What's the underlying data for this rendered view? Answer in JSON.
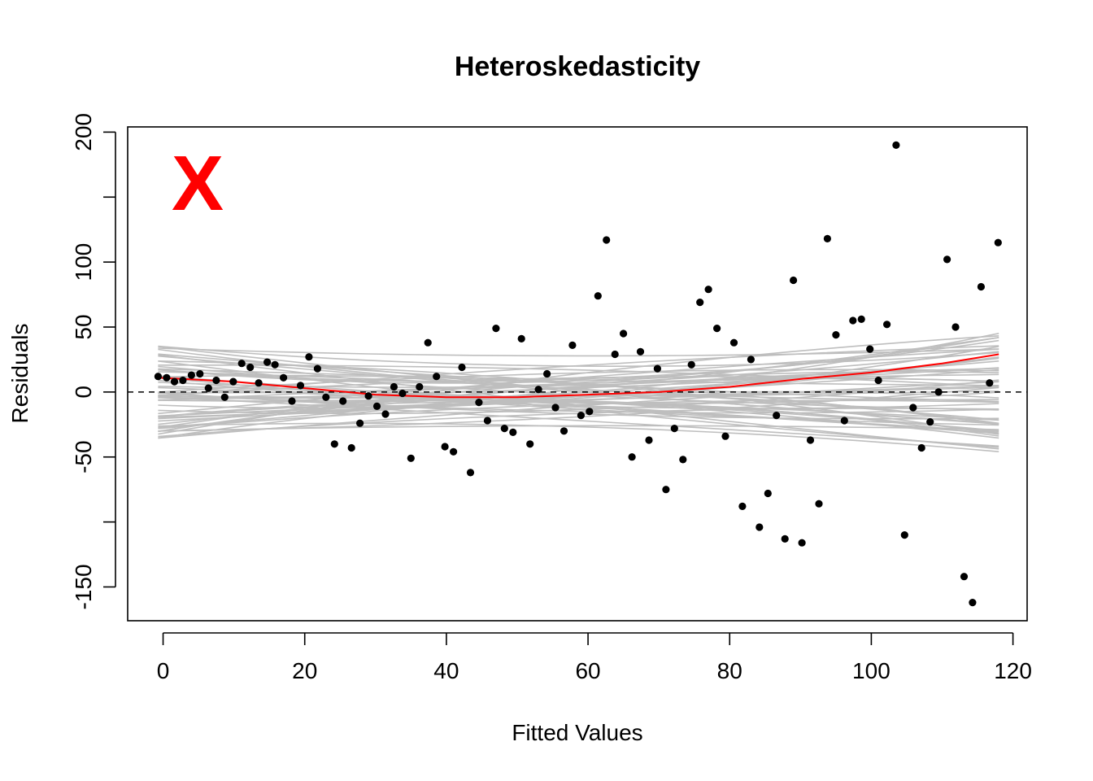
{
  "chart_data": {
    "type": "scatter",
    "title": "Heteroskedasticity",
    "xlabel": "Fitted Values",
    "ylabel": "Residuals",
    "xlim": [
      -5,
      122
    ],
    "ylim": [
      -176,
      204
    ],
    "x_ticks": [
      0,
      20,
      40,
      60,
      80,
      100,
      120
    ],
    "x_tick_labels": [
      "0",
      "20",
      "40",
      "60",
      "80",
      "100",
      "120"
    ],
    "y_ticks": [
      -150,
      -100,
      -50,
      0,
      50,
      100,
      150,
      200
    ],
    "y_tick_labels": [
      "-150",
      "",
      "-50",
      "0",
      "50",
      "100",
      "",
      "200"
    ],
    "reference_line": {
      "y": 0,
      "style": "dashed",
      "color": "#000000"
    },
    "annotation_mark": {
      "text": "X",
      "color": "#ff0000"
    },
    "points_color": "#000000",
    "fit_color": "#ff0000",
    "envelope_color": "#bebebe",
    "points": [
      [
        -0.7,
        12
      ],
      [
        0.5,
        11
      ],
      [
        1.6,
        8
      ],
      [
        2.8,
        9
      ],
      [
        4.0,
        13
      ],
      [
        5.2,
        14
      ],
      [
        6.4,
        3
      ],
      [
        7.5,
        9
      ],
      [
        8.7,
        -4
      ],
      [
        9.9,
        8
      ],
      [
        11.1,
        22
      ],
      [
        12.3,
        19
      ],
      [
        13.5,
        7
      ],
      [
        14.7,
        23
      ],
      [
        15.8,
        21
      ],
      [
        17.0,
        11
      ],
      [
        18.2,
        -7
      ],
      [
        19.4,
        5
      ],
      [
        20.6,
        27
      ],
      [
        21.8,
        18
      ],
      [
        23.0,
        -4
      ],
      [
        24.2,
        -40
      ],
      [
        25.4,
        -7
      ],
      [
        26.6,
        -43
      ],
      [
        27.8,
        -24
      ],
      [
        29.0,
        -3
      ],
      [
        30.2,
        -11
      ],
      [
        31.4,
        -17
      ],
      [
        32.6,
        4
      ],
      [
        33.8,
        -1
      ],
      [
        35.0,
        -51
      ],
      [
        36.2,
        4
      ],
      [
        37.4,
        38
      ],
      [
        38.6,
        12
      ],
      [
        39.8,
        -42
      ],
      [
        41.0,
        -46
      ],
      [
        42.2,
        19
      ],
      [
        43.4,
        -62
      ],
      [
        44.6,
        -8
      ],
      [
        45.8,
        -22
      ],
      [
        47.0,
        49
      ],
      [
        48.2,
        -28
      ],
      [
        49.4,
        -31
      ],
      [
        50.6,
        41
      ],
      [
        51.8,
        -40
      ],
      [
        53.0,
        2
      ],
      [
        54.2,
        14
      ],
      [
        55.4,
        -12
      ],
      [
        56.6,
        -30
      ],
      [
        57.8,
        36
      ],
      [
        59.0,
        -18
      ],
      [
        60.2,
        -15
      ],
      [
        61.4,
        74
      ],
      [
        62.6,
        117
      ],
      [
        63.8,
        29
      ],
      [
        65.0,
        45
      ],
      [
        66.2,
        -50
      ],
      [
        67.4,
        31
      ],
      [
        68.6,
        -37
      ],
      [
        69.8,
        18
      ],
      [
        71.0,
        -75
      ],
      [
        72.2,
        -28
      ],
      [
        73.4,
        -52
      ],
      [
        74.6,
        21
      ],
      [
        75.8,
        69
      ],
      [
        77.0,
        79
      ],
      [
        78.2,
        49
      ],
      [
        79.4,
        -34
      ],
      [
        80.6,
        38
      ],
      [
        81.8,
        -88
      ],
      [
        83.0,
        25
      ],
      [
        84.2,
        -104
      ],
      [
        85.4,
        -78
      ],
      [
        86.6,
        -18
      ],
      [
        87.8,
        -113
      ],
      [
        89.0,
        86
      ],
      [
        90.2,
        -116
      ],
      [
        91.4,
        -37
      ],
      [
        92.6,
        -86
      ],
      [
        93.8,
        118
      ],
      [
        95.0,
        44
      ],
      [
        96.2,
        -22
      ],
      [
        97.4,
        55
      ],
      [
        98.6,
        56
      ],
      [
        99.8,
        33
      ],
      [
        101.0,
        9
      ],
      [
        102.2,
        52
      ],
      [
        103.5,
        190
      ],
      [
        104.7,
        -110
      ],
      [
        105.9,
        -12
      ],
      [
        107.1,
        -43
      ],
      [
        108.3,
        -23
      ],
      [
        109.5,
        0
      ],
      [
        110.7,
        102
      ],
      [
        111.9,
        50
      ],
      [
        113.1,
        -142
      ],
      [
        114.3,
        -162
      ],
      [
        115.5,
        81
      ],
      [
        116.7,
        7
      ],
      [
        117.9,
        115
      ]
    ],
    "fit": {
      "x": [
        -0.7,
        10,
        20,
        30,
        40,
        50,
        60,
        70,
        80,
        90,
        100,
        110,
        118
      ],
      "y": [
        11,
        8,
        3,
        -2,
        -4,
        -4,
        -2,
        0,
        4,
        10,
        15,
        22,
        29
      ]
    },
    "envelope": {
      "count": 60,
      "x_range": [
        -0.7,
        118
      ],
      "start_spread": 36,
      "mid_spread": 26,
      "end_spread": 46
    }
  }
}
